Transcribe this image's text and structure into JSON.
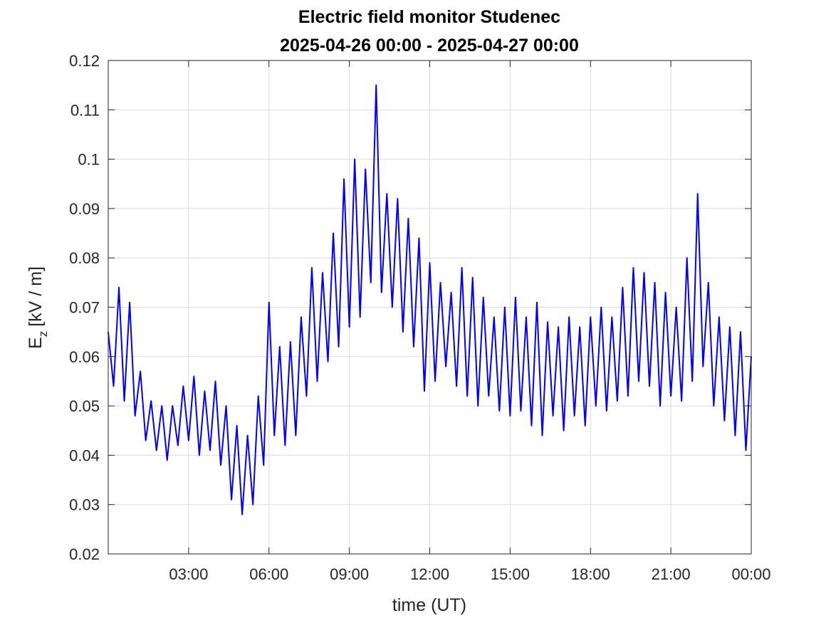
{
  "chart_data": {
    "type": "line",
    "title": [
      "Electric field monitor Studenec",
      "2025-04-26 00:00 - 2025-04-27 00:00"
    ],
    "xlabel": "time (UT)",
    "ylabel": [
      "E",
      "z",
      "[kV / m]"
    ],
    "x": [
      0,
      0.2,
      0.4,
      0.6,
      0.8,
      1,
      1.2,
      1.4,
      1.6,
      1.8,
      2,
      2.2,
      2.4,
      2.6,
      2.8,
      3,
      3.2,
      3.4,
      3.6,
      3.8,
      4,
      4.2,
      4.4,
      4.6,
      4.8,
      5,
      5.2,
      5.4,
      5.6,
      5.8,
      6,
      6.2,
      6.4,
      6.6,
      6.8,
      7,
      7.2,
      7.4,
      7.6,
      7.8,
      8,
      8.2,
      8.4,
      8.6,
      8.8,
      9,
      9.2,
      9.4,
      9.6,
      9.8,
      10,
      10.2,
      10.4,
      10.6,
      10.8,
      11,
      11.2,
      11.4,
      11.6,
      11.8,
      12,
      12.2,
      12.4,
      12.6,
      12.8,
      13,
      13.2,
      13.4,
      13.6,
      13.8,
      14,
      14.2,
      14.4,
      14.6,
      14.8,
      15,
      15.2,
      15.4,
      15.6,
      15.8,
      16,
      16.2,
      16.4,
      16.6,
      16.8,
      17,
      17.2,
      17.4,
      17.6,
      17.8,
      18,
      18.2,
      18.4,
      18.6,
      18.8,
      19,
      19.2,
      19.4,
      19.6,
      19.8,
      20,
      20.2,
      20.4,
      20.6,
      20.8,
      21,
      21.2,
      21.4,
      21.6,
      21.8,
      22,
      22.2,
      22.4,
      22.6,
      22.8,
      23,
      23.2,
      23.4,
      23.6,
      23.8,
      24
    ],
    "series": [
      {
        "name": "Ez",
        "color": "#0000ff",
        "values": [
          0.065,
          0.054,
          0.074,
          0.051,
          0.071,
          0.048,
          0.057,
          0.043,
          0.051,
          0.041,
          0.05,
          0.039,
          0.05,
          0.042,
          0.054,
          0.043,
          0.056,
          0.04,
          0.053,
          0.041,
          0.055,
          0.038,
          0.05,
          0.031,
          0.046,
          0.028,
          0.044,
          0.03,
          0.052,
          0.038,
          0.071,
          0.044,
          0.062,
          0.042,
          0.063,
          0.044,
          0.068,
          0.052,
          0.078,
          0.055,
          0.077,
          0.059,
          0.085,
          0.062,
          0.096,
          0.066,
          0.1,
          0.068,
          0.098,
          0.075,
          0.115,
          0.073,
          0.093,
          0.07,
          0.092,
          0.065,
          0.088,
          0.062,
          0.084,
          0.053,
          0.079,
          0.055,
          0.075,
          0.058,
          0.073,
          0.054,
          0.078,
          0.052,
          0.076,
          0.05,
          0.072,
          0.052,
          0.068,
          0.049,
          0.07,
          0.048,
          0.072,
          0.049,
          0.068,
          0.046,
          0.071,
          0.044,
          0.067,
          0.048,
          0.066,
          0.045,
          0.068,
          0.048,
          0.066,
          0.046,
          0.068,
          0.05,
          0.07,
          0.049,
          0.068,
          0.051,
          0.074,
          0.052,
          0.078,
          0.055,
          0.077,
          0.054,
          0.075,
          0.05,
          0.073,
          0.052,
          0.07,
          0.051,
          0.08,
          0.055,
          0.093,
          0.058,
          0.075,
          0.05,
          0.068,
          0.047,
          0.066,
          0.044,
          0.065,
          0.041,
          0.06
        ]
      }
    ],
    "xlim": [
      0,
      24
    ],
    "xticks": [
      {
        "value": 3,
        "label": "03:00"
      },
      {
        "value": 6,
        "label": "06:00"
      },
      {
        "value": 9,
        "label": "09:00"
      },
      {
        "value": 12,
        "label": "12:00"
      },
      {
        "value": 15,
        "label": "15:00"
      },
      {
        "value": 18,
        "label": "18:00"
      },
      {
        "value": 21,
        "label": "21:00"
      },
      {
        "value": 24,
        "label": "00:00"
      }
    ],
    "ylim": [
      0.02,
      0.12
    ],
    "yticks": [
      0.02,
      0.03,
      0.04,
      0.05,
      0.06,
      0.07,
      0.08,
      0.09,
      0.1,
      0.11,
      0.12
    ],
    "grid": true
  }
}
